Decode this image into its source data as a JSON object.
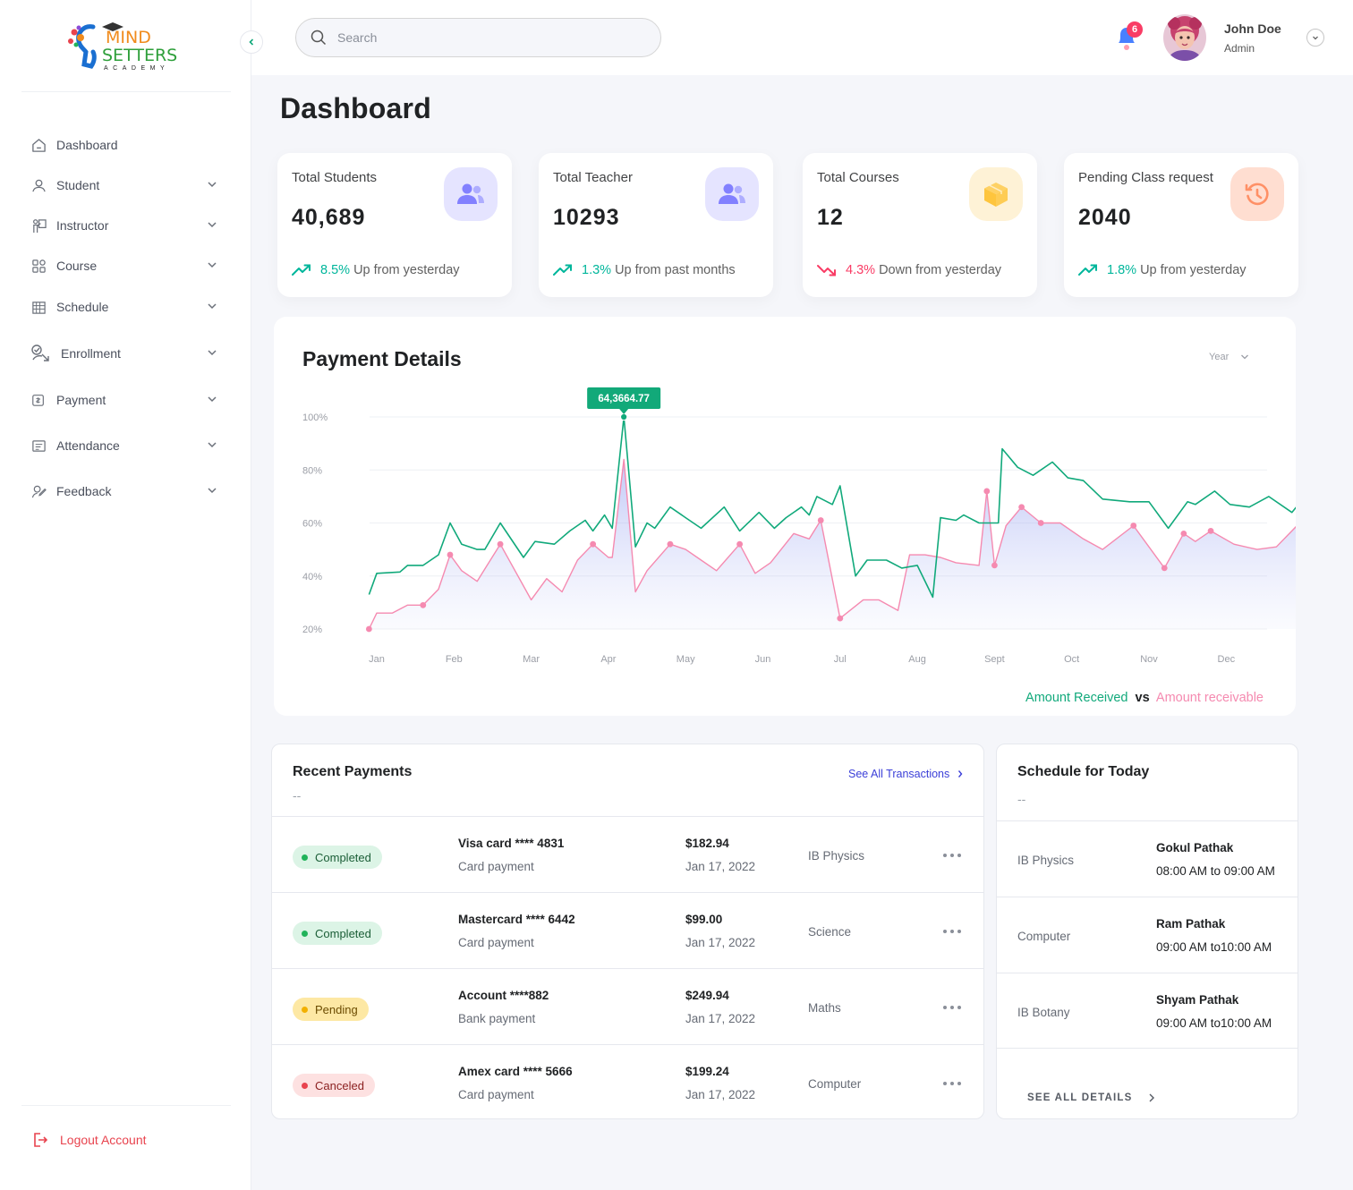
{
  "brand": {
    "line1": "MIND",
    "line2": "SETTERS",
    "line3": "ACADEMY"
  },
  "sidebar": {
    "items": [
      {
        "label": "Dashboard",
        "icon": "home-icon"
      },
      {
        "label": "Student",
        "icon": "student-icon"
      },
      {
        "label": "Instructor",
        "icon": "instructor-icon"
      },
      {
        "label": "Course",
        "icon": "grid-icon"
      },
      {
        "label": "Schedule",
        "icon": "calendar-icon"
      },
      {
        "label": "Enrollment",
        "icon": "enrollment-icon"
      },
      {
        "label": "Payment",
        "icon": "payment-icon"
      },
      {
        "label": "Attendance",
        "icon": "attendance-icon"
      },
      {
        "label": "Feedback",
        "icon": "feedback-icon"
      }
    ],
    "logout_label": "Logout Account"
  },
  "header": {
    "search_placeholder": "Search",
    "notification_count": "6",
    "user_name": "John Doe",
    "user_role": "Admin"
  },
  "page": {
    "title": "Dashboard"
  },
  "stats": [
    {
      "label": "Total Students",
      "value": "40,689",
      "pct": "8.5%",
      "trend_text": "Up from yesterday",
      "direction": "up",
      "icon": "users-icon",
      "icon_bg": "#e5e4ff",
      "icon_color": "#8280ff"
    },
    {
      "label": "Total Teacher",
      "value": "10293",
      "pct": "1.3%",
      "trend_text": "Up from past months",
      "direction": "up",
      "icon": "users-icon",
      "icon_bg": "#e5e4ff",
      "icon_color": "#8280ff"
    },
    {
      "label": "Total Courses",
      "value": "12",
      "pct": "4.3%",
      "trend_text": "Down from yesterday",
      "direction": "down",
      "icon": "box-icon",
      "icon_bg": "#fef2d6",
      "icon_color": "#fec53d"
    },
    {
      "label": "Pending Class request",
      "value": "2040",
      "pct": "1.8%",
      "trend_text": "Up from yesterday",
      "direction": "up",
      "icon": "history-icon",
      "icon_bg": "#ffded1",
      "icon_color": "#ff9066"
    }
  ],
  "colors": {
    "up": "#00b69b",
    "down": "#f93c65",
    "received": "#11a97b",
    "receivable": "#f58ab0"
  },
  "payment_details": {
    "title": "Payment Details",
    "filter": "Year",
    "tooltip": "64,3664.77",
    "legend_received": "Amount Received",
    "legend_vs": "vs",
    "legend_receivable": "Amount receivable"
  },
  "chart_data": {
    "type": "area",
    "x_labels": [
      "Jan",
      "Feb",
      "Mar",
      "Apr",
      "May",
      "Jun",
      "Jul",
      "Aug",
      "Sept",
      "Oct",
      "Nov",
      "Dec"
    ],
    "y_ticks": [
      "100%",
      "80%",
      "60%",
      "40%",
      "20%"
    ],
    "ylim": [
      20,
      100
    ],
    "grid": true,
    "highlight": {
      "series": "Amount Received",
      "x_month": 3.2,
      "label": "64,3664.77"
    },
    "series": [
      {
        "name": "Amount Received",
        "color": "#11a97b",
        "points": [
          [
            -0.1,
            33
          ],
          [
            0.0,
            41
          ],
          [
            0.3,
            41.5
          ],
          [
            0.4,
            44
          ],
          [
            0.6,
            44
          ],
          [
            0.8,
            48
          ],
          [
            0.95,
            60
          ],
          [
            1.1,
            52
          ],
          [
            1.3,
            50
          ],
          [
            1.4,
            50
          ],
          [
            1.6,
            60
          ],
          [
            1.9,
            47
          ],
          [
            2.05,
            53
          ],
          [
            2.3,
            52
          ],
          [
            2.5,
            57
          ],
          [
            2.7,
            61
          ],
          [
            2.8,
            57
          ],
          [
            2.95,
            63
          ],
          [
            3.05,
            58
          ],
          [
            3.2,
            100
          ],
          [
            3.35,
            51
          ],
          [
            3.5,
            60
          ],
          [
            3.6,
            58
          ],
          [
            3.8,
            66
          ],
          [
            4.0,
            62
          ],
          [
            4.2,
            58
          ],
          [
            4.5,
            66
          ],
          [
            4.7,
            57
          ],
          [
            4.95,
            64
          ],
          [
            5.15,
            58
          ],
          [
            5.3,
            62
          ],
          [
            5.5,
            66
          ],
          [
            5.6,
            63
          ],
          [
            5.7,
            70
          ],
          [
            5.9,
            67
          ],
          [
            6.0,
            74
          ],
          [
            6.2,
            40
          ],
          [
            6.35,
            46
          ],
          [
            6.6,
            46
          ],
          [
            6.8,
            43
          ],
          [
            7.0,
            44
          ],
          [
            7.2,
            32
          ],
          [
            7.3,
            62
          ],
          [
            7.5,
            61
          ],
          [
            7.6,
            63
          ],
          [
            7.8,
            60
          ],
          [
            7.9,
            60
          ],
          [
            8.05,
            60
          ],
          [
            8.1,
            88
          ],
          [
            8.3,
            81
          ],
          [
            8.5,
            78
          ],
          [
            8.75,
            83
          ],
          [
            8.95,
            77
          ],
          [
            9.15,
            76
          ],
          [
            9.4,
            69
          ],
          [
            9.75,
            68
          ],
          [
            10.0,
            68
          ],
          [
            10.25,
            58
          ],
          [
            10.5,
            68
          ],
          [
            10.6,
            67
          ],
          [
            10.85,
            72
          ],
          [
            11.05,
            67
          ],
          [
            11.3,
            66
          ],
          [
            11.55,
            70
          ],
          [
            11.85,
            64
          ],
          [
            12.05,
            71
          ]
        ]
      },
      {
        "name": "Amount receivable",
        "color": "#f58ab0",
        "points": [
          [
            -0.1,
            20
          ],
          [
            0.0,
            26
          ],
          [
            0.2,
            26
          ],
          [
            0.4,
            29
          ],
          [
            0.6,
            29
          ],
          [
            0.8,
            35
          ],
          [
            0.95,
            48
          ],
          [
            1.1,
            42
          ],
          [
            1.3,
            38
          ],
          [
            1.6,
            52
          ],
          [
            2.0,
            31
          ],
          [
            2.2,
            39
          ],
          [
            2.4,
            34
          ],
          [
            2.6,
            46
          ],
          [
            2.8,
            52
          ],
          [
            3.0,
            47
          ],
          [
            3.05,
            47
          ],
          [
            3.2,
            84
          ],
          [
            3.35,
            34
          ],
          [
            3.5,
            42
          ],
          [
            3.8,
            52
          ],
          [
            4.0,
            50
          ],
          [
            4.2,
            46
          ],
          [
            4.4,
            42
          ],
          [
            4.7,
            52
          ],
          [
            4.9,
            41
          ],
          [
            5.1,
            45
          ],
          [
            5.4,
            56
          ],
          [
            5.6,
            54
          ],
          [
            5.75,
            61
          ],
          [
            6.0,
            24
          ],
          [
            6.3,
            31
          ],
          [
            6.5,
            31
          ],
          [
            6.75,
            27
          ],
          [
            6.9,
            48
          ],
          [
            7.1,
            48
          ],
          [
            7.3,
            47
          ],
          [
            7.5,
            45
          ],
          [
            7.8,
            44
          ],
          [
            7.9,
            72
          ],
          [
            8.0,
            44
          ],
          [
            8.15,
            59
          ],
          [
            8.35,
            66
          ],
          [
            8.6,
            60
          ],
          [
            8.85,
            60
          ],
          [
            9.15,
            54
          ],
          [
            9.4,
            50
          ],
          [
            9.8,
            59
          ],
          [
            10.2,
            43
          ],
          [
            10.45,
            56
          ],
          [
            10.6,
            53
          ],
          [
            10.8,
            57
          ],
          [
            11.1,
            52
          ],
          [
            11.4,
            50
          ],
          [
            11.65,
            51
          ],
          [
            11.95,
            60
          ]
        ]
      }
    ],
    "markers": {
      "Amount Received": [
        3.2
      ],
      "Amount receivable": [
        -0.1,
        0.6,
        0.95,
        1.6,
        2.05,
        2.8,
        3.8,
        4.7,
        5.75,
        6.0,
        7.2,
        7.9,
        8.0,
        8.35,
        8.6,
        9.8,
        10.2,
        10.45,
        10.8
      ]
    }
  },
  "recent_payments": {
    "title": "Recent Payments",
    "subtitle": "--",
    "see_all": "See All Transactions",
    "rows": [
      {
        "status": "Completed",
        "status_key": "completed",
        "method": "Visa card  **** 4831",
        "type": "Card payment",
        "amount": "$182.94",
        "date": "Jan 17, 2022",
        "subject": "IB Physics"
      },
      {
        "status": "Completed",
        "status_key": "completed",
        "method": "Mastercard  **** 6442",
        "type": "Card payment",
        "amount": "$99.00",
        "date": "Jan 17, 2022",
        "subject": "Science"
      },
      {
        "status": "Pending",
        "status_key": "pending",
        "method": "Account  ****882",
        "type": "Bank payment",
        "amount": "$249.94",
        "date": "Jan 17, 2022",
        "subject": "Maths"
      },
      {
        "status": "Canceled",
        "status_key": "canceled",
        "method": "Amex card  **** 5666",
        "type": "Card payment",
        "amount": "$199.24",
        "date": "Jan 17, 2022",
        "subject": "Computer"
      }
    ]
  },
  "schedule": {
    "title": "Schedule for Today",
    "subtitle": "--",
    "see_all": "SEE ALL DETAILS",
    "rows": [
      {
        "subject": "IB Physics",
        "teacher": "Gokul Pathak",
        "time": "08:00 AM to 09:00 AM"
      },
      {
        "subject": "Computer",
        "teacher": "Ram Pathak",
        "time": "09:00 AM to10:00 AM"
      },
      {
        "subject": "IB Botany",
        "teacher": "Shyam Pathak",
        "time": "09:00 AM to10:00 AM"
      }
    ]
  }
}
